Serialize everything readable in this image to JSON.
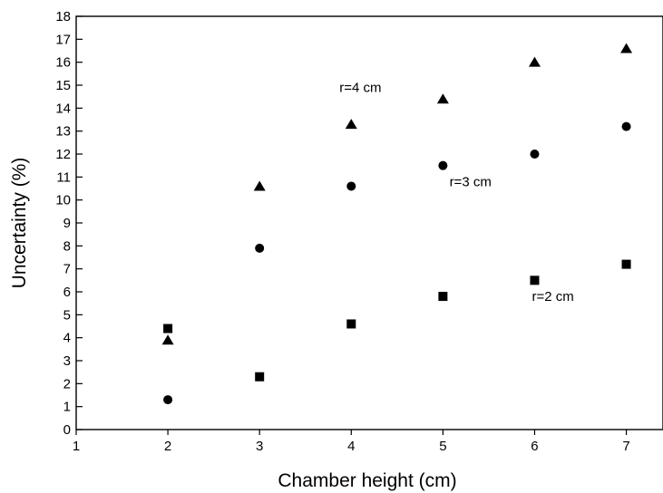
{
  "chart_data": {
    "type": "scatter",
    "xlabel": "Chamber height (cm)",
    "ylabel": "Uncertainty (%)",
    "xlim": [
      1,
      7.4
    ],
    "ylim": [
      0,
      18
    ],
    "xticks": [
      1,
      2,
      3,
      4,
      5,
      6,
      7
    ],
    "yticks": [
      0,
      1,
      2,
      3,
      4,
      5,
      6,
      7,
      8,
      9,
      10,
      11,
      12,
      13,
      14,
      15,
      16,
      17,
      18
    ],
    "grid": false,
    "legend": "none",
    "series": [
      {
        "marker": "triangle",
        "x": [
          2,
          3,
          4,
          5,
          6,
          7
        ],
        "values": [
          3.9,
          10.6,
          13.3,
          14.4,
          16.0,
          16.6
        ]
      },
      {
        "marker": "circle",
        "x": [
          2,
          3,
          4,
          5,
          6,
          7
        ],
        "values": [
          1.3,
          7.9,
          10.6,
          11.5,
          12.0,
          13.2
        ]
      },
      {
        "marker": "square",
        "x": [
          2,
          3,
          4,
          5,
          6,
          7
        ],
        "values": [
          4.4,
          2.3,
          4.6,
          5.8,
          6.5,
          7.2
        ]
      }
    ],
    "annotations": [
      {
        "text": "r=4 cm",
        "x": 4.1,
        "y": 14.7
      },
      {
        "text": "r=3 cm",
        "x": 5.3,
        "y": 10.6
      },
      {
        "text": "r=2 cm",
        "x": 6.2,
        "y": 5.6
      }
    ]
  }
}
